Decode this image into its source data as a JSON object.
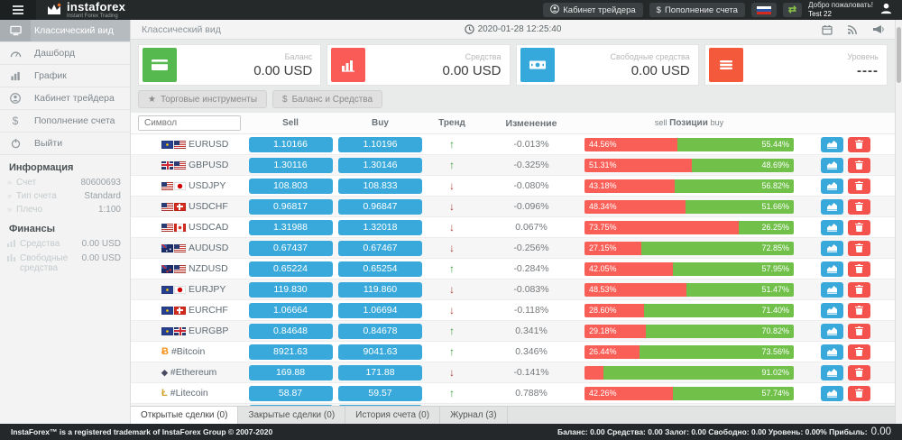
{
  "topbar": {
    "brand": "instaforex",
    "brand_sub": "Instant Forex Trading",
    "cabinet_button": "Кабинет трейдера",
    "deposit_button": "Пополнение счета",
    "welcome_line1": "Добро пожаловать!",
    "welcome_line2": "Test 22"
  },
  "sidebar": {
    "menu": [
      {
        "label": "Классический вид"
      },
      {
        "label": "Дашборд"
      },
      {
        "label": "График"
      },
      {
        "label": "Кабинет трейдера"
      },
      {
        "label": "Пополнение счета"
      },
      {
        "label": "Выйти"
      }
    ],
    "info_header": "Информация",
    "info_rows": [
      {
        "label": "Счет",
        "value": "80600693"
      },
      {
        "label": "Тип счета",
        "value": "Standard"
      },
      {
        "label": "Плечо",
        "value": "1:100"
      }
    ],
    "finance_header": "Финансы",
    "finance_rows": [
      {
        "label": "Средства",
        "value": "0.00 USD"
      },
      {
        "label": "Свободные средства",
        "value": "0.00 USD"
      }
    ]
  },
  "header": {
    "title": "Классический вид",
    "datetime": "2020-01-28 12:25:40"
  },
  "cards": [
    {
      "label": "Баланс",
      "value": "0.00 USD",
      "color": "#56b94f"
    },
    {
      "label": "Средства",
      "value": "0.00 USD",
      "color": "#fb5b57"
    },
    {
      "label": "Свободные средства",
      "value": "0.00 USD",
      "color": "#35a8dc"
    },
    {
      "label": "Уровень",
      "value": "----",
      "color": "#f4593b"
    }
  ],
  "toolbar": {
    "instruments_button": "Торговые инструменты",
    "balance_button": "Баланс и Средства"
  },
  "table": {
    "search_placeholder": "Символ",
    "headers": {
      "sell": "Sell",
      "buy": "Buy",
      "trend": "Тренд",
      "change": "Изменение",
      "pos_sell": "sell",
      "pos_mid": "Позиции",
      "pos_buy": "buy"
    },
    "rows": [
      {
        "symbol": "EURUSD",
        "icons": [
          "flag-eu",
          "flag-us"
        ],
        "sell": "1.10166",
        "buy": "1.10196",
        "trend": "up",
        "change": "-0.013%",
        "sell_pct": 44.56,
        "buy_pct": 55.44,
        "sell_label": "44.56%",
        "buy_label": "55.44%"
      },
      {
        "symbol": "GBPUSD",
        "icons": [
          "flag-gb",
          "flag-us"
        ],
        "sell": "1.30116",
        "buy": "1.30146",
        "trend": "up",
        "change": "-0.325%",
        "sell_pct": 51.31,
        "buy_pct": 48.69,
        "sell_label": "51.31%",
        "buy_label": "48.69%"
      },
      {
        "symbol": "USDJPY",
        "icons": [
          "flag-us",
          "flag-jp"
        ],
        "sell": "108.803",
        "buy": "108.833",
        "trend": "down",
        "change": "-0.080%",
        "sell_pct": 43.18,
        "buy_pct": 56.82,
        "sell_label": "43.18%",
        "buy_label": "56.82%"
      },
      {
        "symbol": "USDCHF",
        "icons": [
          "flag-us",
          "flag-ch"
        ],
        "sell": "0.96817",
        "buy": "0.96847",
        "trend": "down",
        "change": "-0.096%",
        "sell_pct": 48.34,
        "buy_pct": 51.66,
        "sell_label": "48.34%",
        "buy_label": "51.66%"
      },
      {
        "symbol": "USDCAD",
        "icons": [
          "flag-us",
          "flag-ca"
        ],
        "sell": "1.31988",
        "buy": "1.32018",
        "trend": "down",
        "change": "0.067%",
        "sell_pct": 73.75,
        "buy_pct": 26.25,
        "sell_label": "73.75%",
        "buy_label": "26.25%"
      },
      {
        "symbol": "AUDUSD",
        "icons": [
          "flag-au",
          "flag-us"
        ],
        "sell": "0.67437",
        "buy": "0.67467",
        "trend": "down",
        "change": "-0.256%",
        "sell_pct": 27.15,
        "buy_pct": 72.85,
        "sell_label": "27.15%",
        "buy_label": "72.85%"
      },
      {
        "symbol": "NZDUSD",
        "icons": [
          "flag-nz",
          "flag-us"
        ],
        "sell": "0.65224",
        "buy": "0.65254",
        "trend": "up",
        "change": "-0.284%",
        "sell_pct": 42.05,
        "buy_pct": 57.95,
        "sell_label": "42.05%",
        "buy_label": "57.95%"
      },
      {
        "symbol": "EURJPY",
        "icons": [
          "flag-eu",
          "flag-jp"
        ],
        "sell": "119.830",
        "buy": "119.860",
        "trend": "down",
        "change": "-0.083%",
        "sell_pct": 48.53,
        "buy_pct": 51.47,
        "sell_label": "48.53%",
        "buy_label": "51.47%"
      },
      {
        "symbol": "EURCHF",
        "icons": [
          "flag-eu",
          "flag-ch"
        ],
        "sell": "1.06664",
        "buy": "1.06694",
        "trend": "down",
        "change": "-0.118%",
        "sell_pct": 28.6,
        "buy_pct": 71.4,
        "sell_label": "28.60%",
        "buy_label": "71.40%"
      },
      {
        "symbol": "EURGBP",
        "icons": [
          "flag-eu",
          "flag-gb"
        ],
        "sell": "0.84648",
        "buy": "0.84678",
        "trend": "up",
        "change": "0.341%",
        "sell_pct": 29.18,
        "buy_pct": 70.82,
        "sell_label": "29.18%",
        "buy_label": "70.82%"
      },
      {
        "symbol": "#Bitcoin",
        "icons": [
          "crypto-btc"
        ],
        "sell": "8921.63",
        "buy": "9041.63",
        "trend": "up",
        "change": "0.346%",
        "sell_pct": 26.44,
        "buy_pct": 73.56,
        "sell_label": "26.44%",
        "buy_label": "73.56%"
      },
      {
        "symbol": "#Ethereum",
        "icons": [
          "crypto-eth"
        ],
        "sell": "169.88",
        "buy": "171.88",
        "trend": "down",
        "change": "-0.141%",
        "sell_pct": 8.98,
        "buy_pct": 91.02,
        "sell_label": "",
        "buy_label": "91.02%"
      },
      {
        "symbol": "#Litecoin",
        "icons": [
          "crypto-ltc"
        ],
        "sell": "58.87",
        "buy": "59.57",
        "trend": "up",
        "change": "0.788%",
        "sell_pct": 42.26,
        "buy_pct": 57.74,
        "sell_label": "42.26%",
        "buy_label": "57.74%"
      },
      {
        "symbol": "",
        "icons": [
          "crypto-generic"
        ],
        "sell": "",
        "buy": "",
        "trend": "down",
        "change": "",
        "sell_pct": 4,
        "buy_pct": 96,
        "sell_label": "",
        "buy_label": ""
      }
    ]
  },
  "tabs": [
    {
      "label": "Открытые сделки (0)",
      "active": true
    },
    {
      "label": "Закрытые сделки (0)",
      "active": false
    },
    {
      "label": "История счета (0)",
      "active": false
    },
    {
      "label": "Журнал (3)",
      "active": false
    }
  ],
  "footer": {
    "left": "InstaForex™ is a registered trademark of InstaForex Group © 2007-2020",
    "stats": "Баланс: 0.00 Средства: 0.00 Залог: 0.00 Свободно: 0.00 Уровень: 0.00% Прибыль:",
    "profit_value": "0.00"
  },
  "colors": {
    "price_blue": "#39a9db",
    "sell_red": "#f95f57",
    "buy_green": "#70c04a",
    "trend_up": "#3a9d3a",
    "trend_down": "#a9443a"
  }
}
